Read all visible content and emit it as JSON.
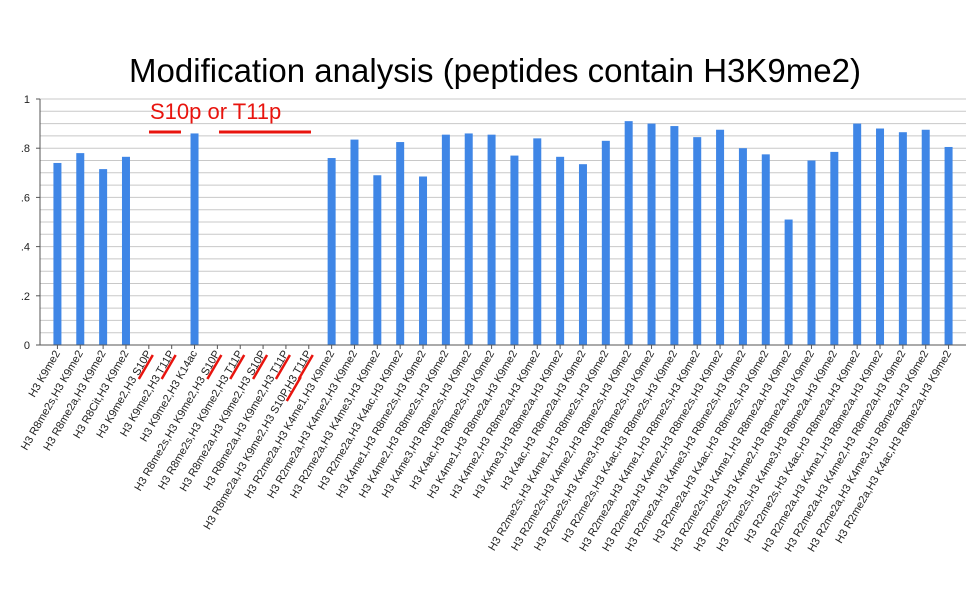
{
  "chart_data": {
    "type": "bar",
    "title": "Modification analysis (peptides contain H3K9me2)",
    "xlabel": "",
    "ylabel": "",
    "ylim": [
      0,
      1
    ],
    "yticks": [
      "0",
      ".2",
      ".4",
      ".6",
      ".8",
      "1"
    ],
    "grid": true,
    "bar_color": "#3f86e6",
    "annotation": "S10p or T11p",
    "annotation_color": "#e8140e",
    "categories": [
      "H3 K9me2",
      "H3 R8me2s,H3 K9me2",
      "H3 R8me2a,H3 K9me2",
      "H3 R8Cit,H3 K9me2",
      "H3 K9me2,H3 S10P",
      "H3 K9me2,H3 T11P",
      "H3 K9me2,H3 K14ac",
      "H3 R8me2s,H3 K9me2,H3 S10P",
      "H3 R8me2s,H3 K9me2,H3 T11P",
      "H3 R8me2a,H3 K9me2,H3 S10P",
      "H3 R8me2a,H3 K9me2,H3 T11P",
      "H3 R8me2a,H3 K9me2,H3 S10P,H3 T11P",
      "H3 R2me2a,H3 K4me1,H3 K9me2",
      "H3 R2me2a,H3 K4me2,H3 K9me2",
      "H3 R2me2a,H3 K4me3,H3 K9me2",
      "H3 R2me2a,H3 K4ac,H3 K9me2",
      "H3 K4me1,H3 R8me2s,H3 K9me2",
      "H3 K4me2,H3 R8me2s,H3 K9me2",
      "H3 K4me3,H3 R8me2s,H3 K9me2",
      "H3 K4ac,H3 R8me2s,H3 K9me2",
      "H3 K4me1,H3 R8me2a,H3 K9me2",
      "H3 K4me2,H3 R8me2a,H3 K9me2",
      "H3 K4me3,H3 R8me2a,H3 K9me2",
      "H3 K4ac,H3 R8me2a,H3 K9me2",
      "H3 R2me2s,H3 K4me1,H3 R8me2s,H3 K9me2",
      "H3 R2me2s,H3 K4me2,H3 R8me2s,H3 K9me2",
      "H3 R2me2s,H3 K4me3,H3 R8me2s,H3 K9me2",
      "H3 R2me2s,H3 K4ac,H3 R8me2s,H3 K9me2",
      "H3 R2me2a,H3 K4me1,H3 R8me2s,H3 K9me2",
      "H3 R2me2a,H3 K4me2,H3 R8me2s,H3 K9me2",
      "H3 R2me2a,H3 K4me3,H3 R8me2s,H3 K9me2",
      "H3 R2me2a,H3 K4ac,H3 R8me2s,H3 K9me2",
      "H3 R2me2s,H3 K4me1,H3 R8me2a,H3 K9me2",
      "H3 R2me2s,H3 K4me2,H3 R8me2a,H3 K9me2",
      "H3 R2me2s,H3 K4me3,H3 R8me2a,H3 K9me2",
      "H3 R2me2s,H3 K4ac,H3 R8me2a,H3 K9me2",
      "H3 R2me2a,H3 K4me1,H3 R8me2a,H3 K9me2",
      "H3 R2me2a,H3 K4me2,H3 R8me2a,H3 K9me2",
      "H3 R2me2a,H3 K4me3,H3 R8me2a,H3 K9me2",
      "H3 R2me2a,H3 K4ac,H3 R8me2a,H3 K9me2"
    ],
    "values": [
      0.74,
      0.78,
      0.715,
      0.765,
      0,
      0,
      0.86,
      0,
      0,
      0,
      0,
      0,
      0.76,
      0.835,
      0.69,
      0.825,
      0.685,
      0.855,
      0.86,
      0.855,
      0.77,
      0.84,
      0.765,
      0.735,
      0.83,
      0.91,
      0.9,
      0.89,
      0.845,
      0.875,
      0.8,
      0.775,
      0.51,
      0.75,
      0.785,
      0.9,
      0.88,
      0.865,
      0.875,
      0.805
    ]
  }
}
